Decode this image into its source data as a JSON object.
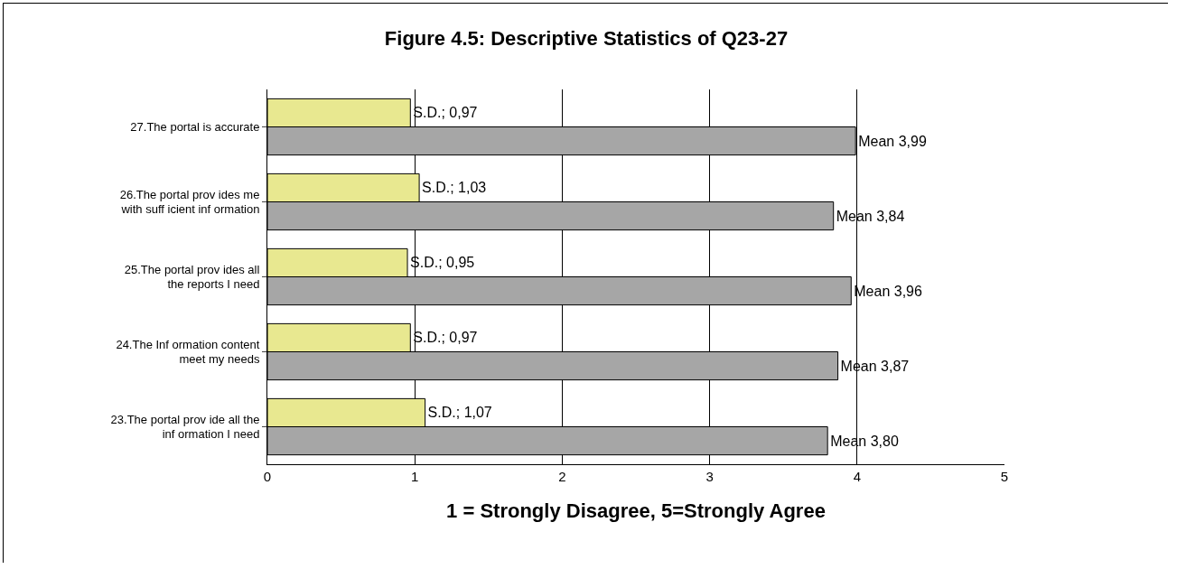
{
  "chart_data": {
    "type": "bar",
    "orientation": "horizontal",
    "title": "Figure 4.5: Descriptive Statistics of Q23-27",
    "xlabel": "1 = Strongly Disagree, 5=Strongly Agree",
    "categories": [
      "27.The portal is accurate",
      "26.The portal prov ides me with suff icient inf ormation",
      "25.The portal prov ides all the reports I need",
      "24.The Inf ormation content meet my needs",
      "23.The portal prov ide all the inf ormation I need"
    ],
    "series": [
      {
        "color": "#e8e890",
        "values": [
          0.97,
          1.03,
          0.95,
          0.97,
          1.07
        ],
        "value_labels": [
          "S.D.; 0,97",
          "S.D.; 1,03",
          "S.D.; 0,95",
          "S.D.; 0,97",
          "S.D.; 1,07"
        ]
      },
      {
        "color": "#a6a6a6",
        "values": [
          3.99,
          3.84,
          3.96,
          3.87,
          3.8
        ],
        "value_labels": [
          "Mean 3,99",
          "Mean 3,84",
          "Mean 3,96",
          "Mean 3,87",
          "Mean 3,80"
        ]
      }
    ],
    "xlim": [
      0,
      5
    ],
    "xticks": [
      0,
      1,
      2,
      3,
      4,
      5
    ],
    "grid": "x"
  }
}
